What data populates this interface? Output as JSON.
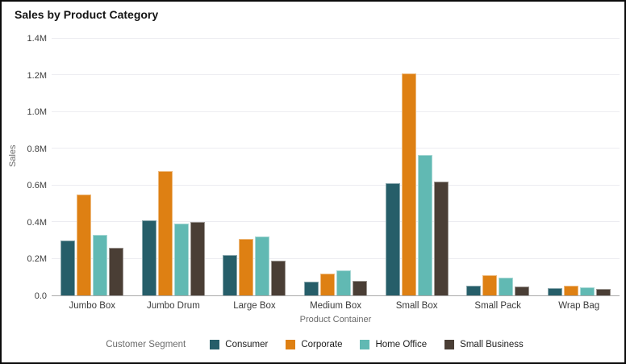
{
  "window": {
    "title": "Sales by Product Category"
  },
  "chart_data": {
    "type": "bar",
    "title": "Sales by Product Category",
    "xlabel": "Product Container",
    "ylabel": "Sales",
    "legend_title": "Customer Segment",
    "legend_position": "bottom",
    "grid": "horizontal",
    "unit": "M",
    "ylim": [
      0,
      1.4
    ],
    "yticks": [
      0,
      0.2,
      0.4,
      0.6,
      0.8,
      1.0,
      1.2,
      1.4
    ],
    "ytick_labels": [
      "0.0",
      "0.2M",
      "0.4M",
      "0.6M",
      "0.8M",
      "1.0M",
      "1.2M",
      "1.4M"
    ],
    "categories": [
      "Jumbo Box",
      "Jumbo Drum",
      "Large Box",
      "Medium Box",
      "Small Box",
      "Small Pack",
      "Wrap Bag"
    ],
    "series": [
      {
        "name": "Consumer",
        "color": "#265e69",
        "values": [
          0.3,
          0.41,
          0.22,
          0.075,
          0.61,
          0.055,
          0.04
        ]
      },
      {
        "name": "Corporate",
        "color": "#de8013",
        "values": [
          0.55,
          0.68,
          0.31,
          0.12,
          1.21,
          0.11,
          0.055
        ]
      },
      {
        "name": "Home Office",
        "color": "#61b9b3",
        "values": [
          0.33,
          0.39,
          0.32,
          0.135,
          0.765,
          0.095,
          0.045
        ]
      },
      {
        "name": "Small Business",
        "color": "#4a3e35",
        "values": [
          0.26,
          0.4,
          0.19,
          0.08,
          0.62,
          0.05,
          0.035
        ]
      }
    ]
  },
  "colors": {
    "frame_border": "#0b0b0b",
    "gridline": "#ececf1",
    "axis_line": "#a9a9a9",
    "title_text": "#141414",
    "tick_text": "#3d3d3d",
    "axis_title_text": "#6b6b6b"
  }
}
